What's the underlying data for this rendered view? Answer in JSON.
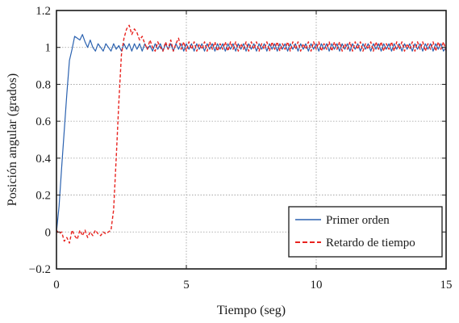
{
  "chart_data": {
    "type": "line",
    "xlabel": "Tiempo (seg)",
    "ylabel": "Posición angular (grados)",
    "xlim": [
      0,
      15
    ],
    "ylim": [
      -0.2,
      1.2
    ],
    "xticks": [
      0,
      5,
      10,
      15
    ],
    "yticks": [
      -0.2,
      0,
      0.2,
      0.4,
      0.6,
      0.8,
      1,
      1.2
    ],
    "xtick_labels": [
      "0",
      "5",
      "10",
      "15"
    ],
    "ytick_labels": [
      "−0.2",
      "0",
      "0.2",
      "0.4",
      "0.6",
      "0.8",
      "1",
      "1.2"
    ],
    "grid": true,
    "legend_position": "bottom-right",
    "series": [
      {
        "name": "Primer orden",
        "color": "#2b62b0",
        "style": "solid",
        "points": [
          [
            0,
            0
          ],
          [
            0.1,
            0.14
          ],
          [
            0.2,
            0.35
          ],
          [
            0.3,
            0.55
          ],
          [
            0.4,
            0.75
          ],
          [
            0.5,
            0.93
          ],
          [
            0.6,
            0.99
          ],
          [
            0.7,
            1.06
          ],
          [
            0.8,
            1.05
          ],
          [
            0.9,
            1.04
          ],
          [
            1.0,
            1.07
          ],
          [
            1.1,
            1.03
          ],
          [
            1.2,
            1.0
          ],
          [
            1.3,
            1.04
          ],
          [
            1.4,
            1.0
          ],
          [
            1.5,
            0.98
          ],
          [
            1.6,
            1.02
          ],
          [
            1.7,
            1.0
          ],
          [
            1.8,
            0.98
          ],
          [
            1.9,
            1.02
          ],
          [
            2.0,
            1.0
          ],
          [
            2.1,
            0.98
          ],
          [
            2.2,
            1.02
          ],
          [
            2.3,
            0.99
          ],
          [
            2.4,
            1.01
          ],
          [
            2.5,
            0.98
          ],
          [
            2.6,
            1.02
          ],
          [
            2.7,
            0.99
          ],
          [
            2.8,
            1.02
          ],
          [
            2.9,
            0.98
          ],
          [
            3.0,
            1.02
          ],
          [
            3.1,
            0.99
          ],
          [
            3.2,
            1.02
          ],
          [
            3.3,
            0.98
          ],
          [
            3.4,
            1.02
          ],
          [
            3.5,
            0.99
          ],
          [
            3.6,
            1.01
          ],
          [
            3.7,
            0.98
          ],
          [
            3.8,
            1.02
          ],
          [
            3.9,
            0.99
          ],
          [
            4.0,
            1.02
          ],
          [
            4.1,
            0.98
          ],
          [
            4.2,
            1.02
          ],
          [
            4.3,
            0.99
          ],
          [
            4.4,
            1.02
          ],
          [
            4.5,
            0.98
          ],
          [
            4.6,
            1.02
          ],
          [
            4.7,
            0.99
          ],
          [
            4.8,
            1.02
          ],
          [
            4.9,
            0.98
          ],
          [
            5.0,
            1.02
          ],
          [
            5.1,
            0.99
          ],
          [
            5.2,
            1.02
          ],
          [
            5.3,
            0.98
          ],
          [
            5.4,
            1.02
          ],
          [
            5.5,
            0.99
          ],
          [
            5.6,
            1.02
          ],
          [
            5.7,
            0.98
          ],
          [
            5.8,
            1.02
          ],
          [
            5.9,
            0.99
          ],
          [
            6.0,
            1.02
          ],
          [
            6.1,
            0.98
          ],
          [
            6.2,
            1.02
          ],
          [
            6.3,
            0.99
          ],
          [
            6.4,
            1.02
          ],
          [
            6.5,
            0.98
          ],
          [
            6.6,
            1.02
          ],
          [
            6.7,
            0.99
          ],
          [
            6.8,
            1.02
          ],
          [
            6.9,
            0.98
          ],
          [
            7.0,
            1.02
          ],
          [
            7.1,
            0.99
          ],
          [
            7.2,
            1.02
          ],
          [
            7.3,
            0.98
          ],
          [
            7.4,
            1.02
          ],
          [
            7.5,
            0.99
          ],
          [
            7.6,
            1.02
          ],
          [
            7.7,
            0.98
          ],
          [
            7.8,
            1.02
          ],
          [
            7.9,
            0.99
          ],
          [
            8.0,
            1.02
          ],
          [
            8.1,
            0.98
          ],
          [
            8.2,
            1.02
          ],
          [
            8.3,
            0.99
          ],
          [
            8.4,
            1.02
          ],
          [
            8.5,
            0.98
          ],
          [
            8.6,
            1.02
          ],
          [
            8.7,
            0.99
          ],
          [
            8.8,
            1.02
          ],
          [
            8.9,
            0.98
          ],
          [
            9.0,
            1.02
          ],
          [
            9.1,
            0.99
          ],
          [
            9.2,
            1.02
          ],
          [
            9.3,
            0.98
          ],
          [
            9.4,
            1.02
          ],
          [
            9.5,
            0.99
          ],
          [
            9.6,
            1.02
          ],
          [
            9.7,
            0.98
          ],
          [
            9.8,
            1.02
          ],
          [
            9.9,
            0.99
          ],
          [
            10.0,
            1.02
          ],
          [
            10.1,
            0.98
          ],
          [
            10.2,
            1.02
          ],
          [
            10.3,
            0.99
          ],
          [
            10.4,
            1.02
          ],
          [
            10.5,
            0.98
          ],
          [
            10.6,
            1.02
          ],
          [
            10.7,
            0.99
          ],
          [
            10.8,
            1.02
          ],
          [
            10.9,
            0.98
          ],
          [
            11.0,
            1.02
          ],
          [
            11.1,
            0.99
          ],
          [
            11.2,
            1.02
          ],
          [
            11.3,
            0.98
          ],
          [
            11.4,
            1.02
          ],
          [
            11.5,
            0.99
          ],
          [
            11.6,
            1.02
          ],
          [
            11.7,
            0.98
          ],
          [
            11.8,
            1.02
          ],
          [
            11.9,
            0.99
          ],
          [
            12.0,
            1.02
          ],
          [
            12.1,
            0.98
          ],
          [
            12.2,
            1.02
          ],
          [
            12.3,
            0.99
          ],
          [
            12.4,
            1.02
          ],
          [
            12.5,
            0.98
          ],
          [
            12.6,
            1.02
          ],
          [
            12.7,
            0.99
          ],
          [
            12.8,
            1.02
          ],
          [
            12.9,
            0.98
          ],
          [
            13.0,
            1.02
          ],
          [
            13.1,
            0.99
          ],
          [
            13.2,
            1.02
          ],
          [
            13.3,
            0.98
          ],
          [
            13.4,
            1.02
          ],
          [
            13.5,
            0.99
          ],
          [
            13.6,
            1.02
          ],
          [
            13.7,
            0.98
          ],
          [
            13.8,
            1.02
          ],
          [
            13.9,
            0.99
          ],
          [
            14.0,
            1.02
          ],
          [
            14.1,
            0.98
          ],
          [
            14.2,
            1.02
          ],
          [
            14.3,
            0.99
          ],
          [
            14.4,
            1.02
          ],
          [
            14.5,
            0.98
          ],
          [
            14.6,
            1.02
          ],
          [
            14.7,
            0.99
          ],
          [
            14.8,
            1.02
          ],
          [
            14.9,
            0.98
          ],
          [
            15.0,
            1.0
          ]
        ]
      },
      {
        "name": "Retardo de tiempo",
        "color": "#e8231f",
        "style": "dashed",
        "points": [
          [
            0,
            0.01
          ],
          [
            0.1,
            -0.01
          ],
          [
            0.2,
            0.0
          ],
          [
            0.3,
            -0.05
          ],
          [
            0.4,
            -0.03
          ],
          [
            0.5,
            -0.06
          ],
          [
            0.6,
            0.01
          ],
          [
            0.7,
            -0.02
          ],
          [
            0.8,
            -0.04
          ],
          [
            0.9,
            0.01
          ],
          [
            1.0,
            -0.02
          ],
          [
            1.1,
            0.01
          ],
          [
            1.2,
            -0.03
          ],
          [
            1.3,
            0.0
          ],
          [
            1.4,
            -0.02
          ],
          [
            1.5,
            0.01
          ],
          [
            1.6,
            -0.01
          ],
          [
            1.7,
            -0.02
          ],
          [
            1.8,
            0.0
          ],
          [
            1.9,
            -0.01
          ],
          [
            2.0,
            0.0
          ],
          [
            2.1,
            0.01
          ],
          [
            2.2,
            0.12
          ],
          [
            2.3,
            0.4
          ],
          [
            2.4,
            0.7
          ],
          [
            2.5,
            0.96
          ],
          [
            2.6,
            1.05
          ],
          [
            2.7,
            1.1
          ],
          [
            2.8,
            1.12
          ],
          [
            2.9,
            1.07
          ],
          [
            3.0,
            1.1
          ],
          [
            3.1,
            1.08
          ],
          [
            3.2,
            1.04
          ],
          [
            3.3,
            1.06
          ],
          [
            3.4,
            1.02
          ],
          [
            3.5,
            0.99
          ],
          [
            3.6,
            1.04
          ],
          [
            3.7,
            1.0
          ],
          [
            3.8,
            0.98
          ],
          [
            3.9,
            1.03
          ],
          [
            4.0,
            1.0
          ],
          [
            4.1,
            0.98
          ],
          [
            4.2,
            1.03
          ],
          [
            4.3,
            0.99
          ],
          [
            4.4,
            1.04
          ],
          [
            4.5,
            0.98
          ],
          [
            4.6,
            1.02
          ],
          [
            4.7,
            1.05
          ],
          [
            4.8,
            0.99
          ],
          [
            4.9,
            1.03
          ],
          [
            5.0,
            0.98
          ],
          [
            5.1,
            1.03
          ],
          [
            5.2,
            0.99
          ],
          [
            5.3,
            1.03
          ],
          [
            5.4,
            0.98
          ],
          [
            5.5,
            1.02
          ],
          [
            5.6,
            0.99
          ],
          [
            5.7,
            1.03
          ],
          [
            5.8,
            0.98
          ],
          [
            5.9,
            1.03
          ],
          [
            6.0,
            0.99
          ],
          [
            6.1,
            1.03
          ],
          [
            6.2,
            0.98
          ],
          [
            6.3,
            1.02
          ],
          [
            6.4,
            0.99
          ],
          [
            6.5,
            1.03
          ],
          [
            6.6,
            0.98
          ],
          [
            6.7,
            1.03
          ],
          [
            6.8,
            0.99
          ],
          [
            6.9,
            1.03
          ],
          [
            7.0,
            0.98
          ],
          [
            7.1,
            1.02
          ],
          [
            7.2,
            0.99
          ],
          [
            7.3,
            1.03
          ],
          [
            7.4,
            0.98
          ],
          [
            7.5,
            1.03
          ],
          [
            7.6,
            0.99
          ],
          [
            7.7,
            1.03
          ],
          [
            7.8,
            0.98
          ],
          [
            7.9,
            1.02
          ],
          [
            8.0,
            0.99
          ],
          [
            8.1,
            1.03
          ],
          [
            8.2,
            0.98
          ],
          [
            8.3,
            1.03
          ],
          [
            8.4,
            0.99
          ],
          [
            8.5,
            1.03
          ],
          [
            8.6,
            0.98
          ],
          [
            8.7,
            1.02
          ],
          [
            8.8,
            0.99
          ],
          [
            8.9,
            1.03
          ],
          [
            9.0,
            0.98
          ],
          [
            9.1,
            1.03
          ],
          [
            9.2,
            0.99
          ],
          [
            9.3,
            1.03
          ],
          [
            9.4,
            0.98
          ],
          [
            9.5,
            1.02
          ],
          [
            9.6,
            0.99
          ],
          [
            9.7,
            1.03
          ],
          [
            9.8,
            0.98
          ],
          [
            9.9,
            1.03
          ],
          [
            10.0,
            0.99
          ],
          [
            10.1,
            1.03
          ],
          [
            10.2,
            0.98
          ],
          [
            10.3,
            1.02
          ],
          [
            10.4,
            0.99
          ],
          [
            10.5,
            1.03
          ],
          [
            10.6,
            0.98
          ],
          [
            10.7,
            1.03
          ],
          [
            10.8,
            0.99
          ],
          [
            10.9,
            1.03
          ],
          [
            11.0,
            0.98
          ],
          [
            11.1,
            1.02
          ],
          [
            11.2,
            0.99
          ],
          [
            11.3,
            1.03
          ],
          [
            11.4,
            0.98
          ],
          [
            11.5,
            1.03
          ],
          [
            11.6,
            0.99
          ],
          [
            11.7,
            1.03
          ],
          [
            11.8,
            0.98
          ],
          [
            11.9,
            1.02
          ],
          [
            12.0,
            0.99
          ],
          [
            12.1,
            1.03
          ],
          [
            12.2,
            0.98
          ],
          [
            12.3,
            1.03
          ],
          [
            12.4,
            0.99
          ],
          [
            12.5,
            1.03
          ],
          [
            12.6,
            0.98
          ],
          [
            12.7,
            1.02
          ],
          [
            12.8,
            0.99
          ],
          [
            12.9,
            1.03
          ],
          [
            13.0,
            0.98
          ],
          [
            13.1,
            1.03
          ],
          [
            13.2,
            0.99
          ],
          [
            13.3,
            1.03
          ],
          [
            13.4,
            0.98
          ],
          [
            13.5,
            1.02
          ],
          [
            13.6,
            0.99
          ],
          [
            13.7,
            1.03
          ],
          [
            13.8,
            0.98
          ],
          [
            13.9,
            1.03
          ],
          [
            14.0,
            0.99
          ],
          [
            14.1,
            1.03
          ],
          [
            14.2,
            0.98
          ],
          [
            14.3,
            1.02
          ],
          [
            14.4,
            0.99
          ],
          [
            14.5,
            1.03
          ],
          [
            14.6,
            0.98
          ],
          [
            14.7,
            1.03
          ],
          [
            14.8,
            0.99
          ],
          [
            14.9,
            1.03
          ],
          [
            15.0,
            0.98
          ]
        ]
      }
    ],
    "frame_color": "#1a1a1a",
    "grid_color": "#9a9a9a"
  }
}
